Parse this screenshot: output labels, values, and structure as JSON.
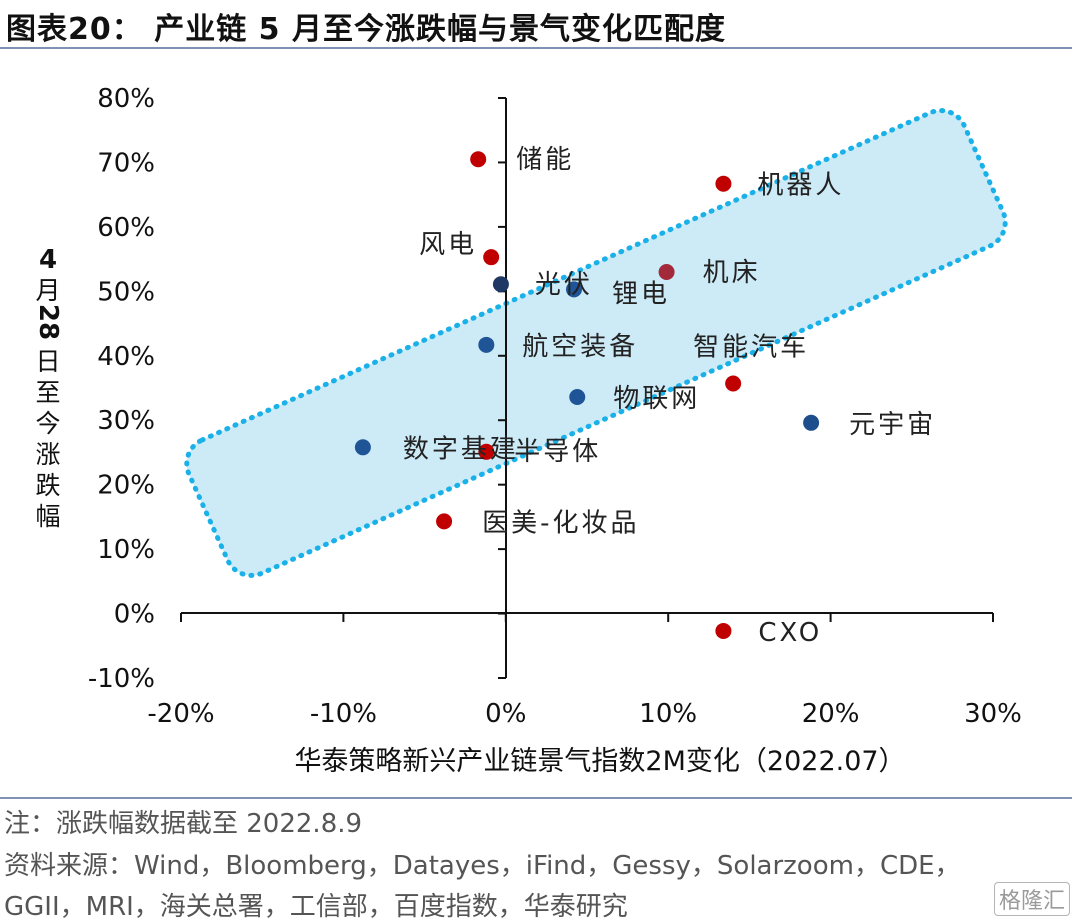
{
  "title": "图表20：  产业链 5 月至今涨跌幅与景气变化匹配度",
  "chart_data": {
    "type": "scatter",
    "title": "图表20：  产业链 5 月至今涨跌幅与景气变化匹配度",
    "xlabel": "华泰策略新兴产业链景气指数2M变化（2022.07）",
    "ylabel": "4月28日至今涨跌幅",
    "xlim": [
      -0.2,
      0.3
    ],
    "ylim": [
      -0.1,
      0.8
    ],
    "x_ticks": [
      "-20%",
      "-10%",
      "0%",
      "10%",
      "20%",
      "30%"
    ],
    "y_ticks": [
      "80%",
      "70%",
      "60%",
      "50%",
      "40%",
      "30%",
      "20%",
      "10%",
      "0%",
      "-10%"
    ],
    "grid": false,
    "points": [
      {
        "label": "储能",
        "x": -0.017,
        "y": 0.705,
        "color": "#c00000"
      },
      {
        "label": "机器人",
        "x": 0.134,
        "y": 0.667,
        "color": "#c00000"
      },
      {
        "label": "风电",
        "x": -0.009,
        "y": 0.553,
        "color": "#c00000"
      },
      {
        "label": "机床",
        "x": 0.099,
        "y": 0.53,
        "color": "#a32a3a"
      },
      {
        "label": "光伏",
        "x": -0.003,
        "y": 0.511,
        "color": "#1f3864"
      },
      {
        "label": "锂电",
        "x": 0.042,
        "y": 0.503,
        "color": "#1f5597"
      },
      {
        "label": "航空装备",
        "x": -0.012,
        "y": 0.417,
        "color": "#1f5597"
      },
      {
        "label": "智能汽车",
        "x": 0.14,
        "y": 0.357,
        "color": "#c00000"
      },
      {
        "label": "物联网",
        "x": 0.044,
        "y": 0.336,
        "color": "#1f5597"
      },
      {
        "label": "元宇宙",
        "x": 0.188,
        "y": 0.296,
        "color": "#1f4e8c"
      },
      {
        "label": "数字基建",
        "x": -0.088,
        "y": 0.258,
        "color": "#1f5597"
      },
      {
        "label": "半导体",
        "x": -0.012,
        "y": 0.251,
        "color": "#c00000"
      },
      {
        "label": "医美-化妆品",
        "x": -0.038,
        "y": 0.143,
        "color": "#c00000"
      },
      {
        "label": "CXO",
        "x": 0.134,
        "y": -0.027,
        "color": "#c00000"
      }
    ],
    "highlight_band": {
      "shape": "rounded-rectangle",
      "fill": "#cdeaf7",
      "border": "#1ab0e8",
      "border_style": "dotted"
    }
  },
  "notes": {
    "line1": "注：涨跌幅数据截至 2022.8.9",
    "line2": "资料来源：Wind，Bloomberg，Datayes，iFind，Gessy，Solarzoom，CDE，",
    "line3": "GGII，MRI，海关总署，工信部，百度指数，华泰研究"
  },
  "watermark": "格隆汇"
}
